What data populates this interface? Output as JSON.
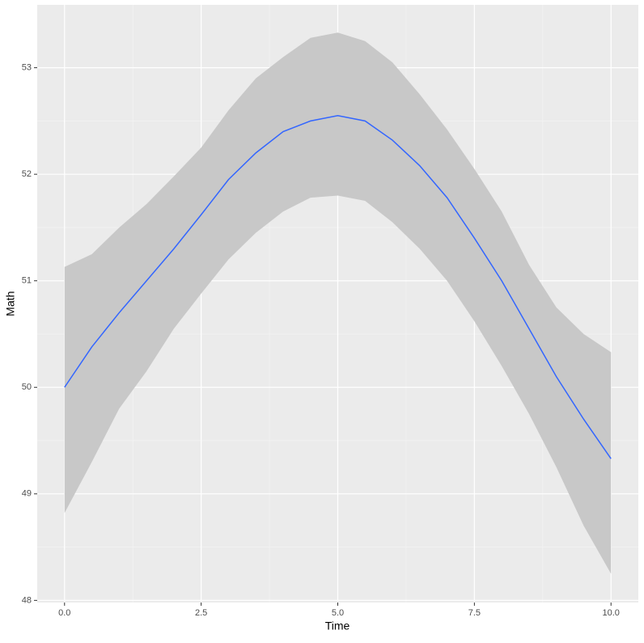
{
  "chart_data": {
    "type": "smooth-line",
    "x_label": "Time",
    "y_label": "Math",
    "x": [
      0,
      0.5,
      1,
      1.5,
      2,
      2.5,
      3,
      3.5,
      4,
      4.5,
      5,
      5.5,
      6,
      6.5,
      7,
      7.5,
      8,
      8.5,
      9,
      9.5,
      10
    ],
    "values": [
      50.0,
      50.38,
      50.7,
      51.0,
      51.3,
      51.62,
      51.95,
      52.2,
      52.4,
      52.5,
      52.55,
      52.5,
      52.32,
      52.08,
      51.78,
      51.4,
      51.0,
      50.55,
      50.1,
      49.7,
      49.33
    ],
    "lower": [
      48.82,
      49.3,
      49.8,
      50.15,
      50.55,
      50.88,
      51.2,
      51.45,
      51.65,
      51.78,
      51.8,
      51.75,
      51.55,
      51.3,
      51.0,
      50.62,
      50.2,
      49.75,
      49.25,
      48.7,
      48.25
    ],
    "upper": [
      51.13,
      51.25,
      51.5,
      51.72,
      51.98,
      52.25,
      52.6,
      52.9,
      53.1,
      53.28,
      53.33,
      53.25,
      53.05,
      52.75,
      52.42,
      52.05,
      51.65,
      51.15,
      50.75,
      50.5,
      50.33
    ],
    "color": "#3366ff",
    "band_color": "#c8c8c8",
    "xlim": [
      -0.5,
      10.5
    ],
    "xticks": [
      {
        "value": 0,
        "label": "0.0"
      },
      {
        "value": 2.5,
        "label": "2.5"
      },
      {
        "value": 5,
        "label": "5.0"
      },
      {
        "value": 7.5,
        "label": "7.5"
      },
      {
        "value": 10,
        "label": "10.0"
      }
    ],
    "ylim": [
      47.98,
      53.59
    ],
    "yticks": [
      48,
      49,
      50,
      51,
      52,
      53
    ],
    "grid": true
  }
}
